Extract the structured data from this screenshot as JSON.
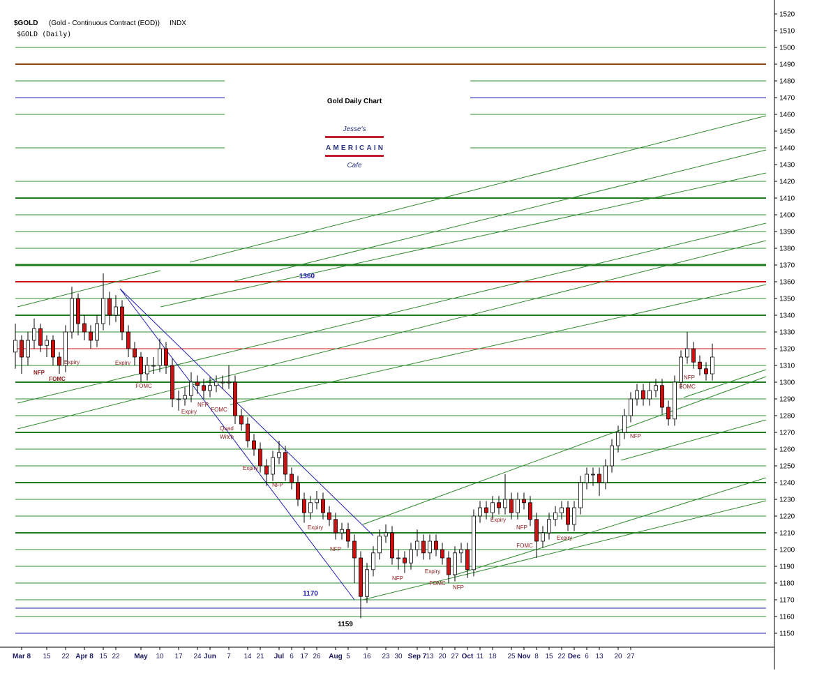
{
  "chart_data": {
    "type": "candlestick",
    "symbol": "$GOLD",
    "description": "(Gold - Continuous Contract (EOD))",
    "exchange": "INDX",
    "subtitle": "$GOLD (Daily)",
    "title": "Gold Daily Chart",
    "logo": {
      "top": "Jesse's",
      "middle": "AMERICAIN",
      "bottom": "Cafe"
    },
    "ylim": [
      1145,
      1525
    ],
    "yticks": [
      1150,
      1160,
      1170,
      1180,
      1190,
      1200,
      1210,
      1220,
      1230,
      1240,
      1250,
      1260,
      1270,
      1280,
      1290,
      1300,
      1310,
      1320,
      1330,
      1340,
      1350,
      1360,
      1370,
      1380,
      1390,
      1400,
      1410,
      1420,
      1430,
      1440,
      1450,
      1460,
      1470,
      1480,
      1490,
      1500,
      1510,
      1520
    ],
    "up_color": "#ffffff",
    "down_color": "#d01010",
    "categories": [
      null,
      "Mar 8",
      null,
      null,
      null,
      "15",
      null,
      null,
      "22",
      null,
      null,
      "Apr 8",
      null,
      null,
      "15",
      null,
      "22",
      null,
      null,
      null,
      "May",
      null,
      null,
      "10",
      null,
      null,
      "17",
      null,
      null,
      "24",
      null,
      "Jun",
      null,
      null,
      "7",
      null,
      null,
      "14",
      null,
      "21",
      null,
      null,
      "Jul",
      null,
      "6",
      null,
      "17",
      null,
      "26",
      null,
      null,
      "Aug",
      null,
      "5",
      null,
      null,
      "16",
      null,
      null,
      "23",
      null,
      "30",
      null,
      null,
      "Sep 7",
      null,
      "13",
      null,
      "20",
      null,
      "27",
      null,
      "Oct",
      null,
      "11",
      null,
      "18",
      null,
      null,
      "25",
      null,
      "Nov",
      null,
      "8",
      null,
      "15",
      null,
      "22",
      null,
      "Dec",
      null,
      "6",
      null,
      "13",
      null,
      null,
      "20",
      null,
      "27",
      null,
      null,
      null,
      null,
      null,
      null,
      null,
      null,
      null,
      null,
      null,
      null,
      null
    ],
    "ohlc": [
      [
        1318,
        1335,
        1308,
        1325
      ],
      [
        1325,
        1328,
        1305,
        1315
      ],
      [
        1315,
        1330,
        1310,
        1325
      ],
      [
        1325,
        1338,
        1320,
        1332
      ],
      [
        1332,
        1335,
        1318,
        1322
      ],
      [
        1322,
        1328,
        1315,
        1325
      ],
      [
        1325,
        1328,
        1310,
        1315
      ],
      [
        1315,
        1318,
        1305,
        1310
      ],
      [
        1310,
        1334,
        1306,
        1330
      ],
      [
        1330,
        1357,
        1326,
        1350
      ],
      [
        1350,
        1353,
        1328,
        1335
      ],
      [
        1335,
        1340,
        1325,
        1330
      ],
      [
        1330,
        1334,
        1320,
        1325
      ],
      [
        1325,
        1340,
        1321,
        1335
      ],
      [
        1335,
        1365,
        1331,
        1350
      ],
      [
        1350,
        1354,
        1334,
        1340
      ],
      [
        1340,
        1352,
        1336,
        1345
      ],
      [
        1345,
        1349,
        1325,
        1330
      ],
      [
        1330,
        1334,
        1315,
        1320
      ],
      [
        1320,
        1324,
        1310,
        1315
      ],
      [
        1315,
        1318,
        1300,
        1305
      ],
      [
        1305,
        1315,
        1301,
        1310
      ],
      [
        1310,
        1315,
        1305,
        1310
      ],
      [
        1310,
        1326,
        1306,
        1320
      ],
      [
        1320,
        1324,
        1305,
        1310
      ],
      [
        1310,
        1314,
        1285,
        1290
      ],
      [
        1290,
        1295,
        1283,
        1290
      ],
      [
        1290,
        1297,
        1286,
        1292
      ],
      [
        1292,
        1306,
        1288,
        1300
      ],
      [
        1300,
        1304,
        1293,
        1298
      ],
      [
        1298,
        1302,
        1290,
        1295
      ],
      [
        1295,
        1303,
        1291,
        1298
      ],
      [
        1298,
        1304,
        1294,
        1300
      ],
      [
        1300,
        1304,
        1296,
        1300
      ],
      [
        1300,
        1310,
        1296,
        1300
      ],
      [
        1300,
        1304,
        1275,
        1280
      ],
      [
        1280,
        1284,
        1271,
        1275
      ],
      [
        1275,
        1279,
        1261,
        1265
      ],
      [
        1265,
        1269,
        1256,
        1260
      ],
      [
        1260,
        1264,
        1246,
        1250
      ],
      [
        1250,
        1254,
        1238,
        1245
      ],
      [
        1245,
        1259,
        1241,
        1255
      ],
      [
        1255,
        1265,
        1251,
        1258
      ],
      [
        1258,
        1262,
        1241,
        1245
      ],
      [
        1245,
        1249,
        1236,
        1240
      ],
      [
        1240,
        1244,
        1226,
        1230
      ],
      [
        1230,
        1234,
        1216,
        1222
      ],
      [
        1222,
        1232,
        1218,
        1228
      ],
      [
        1228,
        1235,
        1224,
        1230
      ],
      [
        1230,
        1234,
        1218,
        1222
      ],
      [
        1222,
        1226,
        1214,
        1218
      ],
      [
        1218,
        1222,
        1206,
        1210
      ],
      [
        1210,
        1216,
        1206,
        1212
      ],
      [
        1212,
        1216,
        1201,
        1205
      ],
      [
        1205,
        1209,
        1180,
        1195
      ],
      [
        1195,
        1199,
        1159,
        1172
      ],
      [
        1172,
        1192,
        1168,
        1188
      ],
      [
        1188,
        1202,
        1184,
        1198
      ],
      [
        1198,
        1212,
        1194,
        1208
      ],
      [
        1208,
        1215,
        1204,
        1210
      ],
      [
        1210,
        1214,
        1191,
        1195
      ],
      [
        1195,
        1200,
        1188,
        1195
      ],
      [
        1195,
        1199,
        1186,
        1192
      ],
      [
        1192,
        1204,
        1188,
        1200
      ],
      [
        1200,
        1212,
        1196,
        1205
      ],
      [
        1205,
        1209,
        1194,
        1198
      ],
      [
        1198,
        1209,
        1194,
        1205
      ],
      [
        1205,
        1209,
        1196,
        1200
      ],
      [
        1200,
        1204,
        1191,
        1195
      ],
      [
        1195,
        1199,
        1180,
        1185
      ],
      [
        1185,
        1202,
        1181,
        1198
      ],
      [
        1198,
        1204,
        1192,
        1200
      ],
      [
        1200,
        1204,
        1183,
        1188
      ],
      [
        1188,
        1224,
        1184,
        1220
      ],
      [
        1220,
        1229,
        1216,
        1225
      ],
      [
        1225,
        1229,
        1218,
        1222
      ],
      [
        1222,
        1232,
        1218,
        1228
      ],
      [
        1228,
        1232,
        1221,
        1225
      ],
      [
        1225,
        1245,
        1221,
        1230
      ],
      [
        1230,
        1234,
        1218,
        1222
      ],
      [
        1222,
        1234,
        1218,
        1230
      ],
      [
        1230,
        1234,
        1224,
        1228
      ],
      [
        1228,
        1232,
        1214,
        1218
      ],
      [
        1218,
        1222,
        1195,
        1205
      ],
      [
        1205,
        1214,
        1201,
        1210
      ],
      [
        1210,
        1222,
        1206,
        1218
      ],
      [
        1218,
        1226,
        1214,
        1222
      ],
      [
        1222,
        1229,
        1218,
        1225
      ],
      [
        1225,
        1229,
        1211,
        1215
      ],
      [
        1215,
        1229,
        1211,
        1225
      ],
      [
        1225,
        1244,
        1221,
        1240
      ],
      [
        1240,
        1249,
        1236,
        1245
      ],
      [
        1245,
        1249,
        1238,
        1245
      ],
      [
        1245,
        1249,
        1232,
        1240
      ],
      [
        1240,
        1254,
        1236,
        1250
      ],
      [
        1250,
        1266,
        1246,
        1262
      ],
      [
        1262,
        1274,
        1258,
        1270
      ],
      [
        1270,
        1284,
        1266,
        1280
      ],
      [
        1280,
        1294,
        1276,
        1290
      ],
      [
        1290,
        1299,
        1286,
        1295
      ],
      [
        1295,
        1299,
        1286,
        1290
      ],
      [
        1290,
        1300,
        1286,
        1295
      ],
      [
        1295,
        1302,
        1291,
        1298
      ],
      [
        1298,
        1302,
        1281,
        1285
      ],
      [
        1285,
        1289,
        1274,
        1278
      ],
      [
        1278,
        1304,
        1274,
        1300
      ],
      [
        1300,
        1319,
        1296,
        1315
      ],
      [
        1315,
        1330,
        1311,
        1320
      ],
      [
        1320,
        1324,
        1308,
        1312
      ],
      [
        1312,
        1316,
        1304,
        1308
      ],
      [
        1308,
        1312,
        1301,
        1305
      ],
      [
        1305,
        1323,
        1301,
        1315
      ]
    ],
    "levels": [
      {
        "value": 1500,
        "color": "#2e8b2e",
        "width": 1
      },
      {
        "value": 1490,
        "color": "#8b4513",
        "width": 2
      },
      {
        "value": 1480,
        "color": "#2e8b2e",
        "width": 1
      },
      {
        "value": 1470,
        "color": "#2020b0",
        "width": 1
      },
      {
        "value": 1460,
        "color": "#2e8b2e",
        "width": 1
      },
      {
        "value": 1440,
        "color": "#2e8b2e",
        "width": 1
      },
      {
        "value": 1420,
        "color": "#2e8b2e",
        "width": 1
      },
      {
        "value": 1410,
        "color": "#1f7a1f",
        "width": 2
      },
      {
        "value": 1400,
        "color": "#2e8b2e",
        "width": 1
      },
      {
        "value": 1390,
        "color": "#2e8b2e",
        "width": 1
      },
      {
        "value": 1380,
        "color": "#2e8b2e",
        "width": 1
      },
      {
        "value": 1370,
        "color": "#1f7a1f",
        "width": 3
      },
      {
        "value": 1360,
        "color": "#d01010",
        "width": 2
      },
      {
        "value": 1350,
        "color": "#2e8b2e",
        "width": 1
      },
      {
        "value": 1340,
        "color": "#1f7a1f",
        "width": 2
      },
      {
        "value": 1330,
        "color": "#2e8b2e",
        "width": 1
      },
      {
        "value": 1320,
        "color": "#d01010",
        "width": 1
      },
      {
        "value": 1310,
        "color": "#2e8b2e",
        "width": 1
      },
      {
        "value": 1300,
        "color": "#1f7a1f",
        "width": 2
      },
      {
        "value": 1290,
        "color": "#2e8b2e",
        "width": 1
      },
      {
        "value": 1280,
        "color": "#2e8b2e",
        "width": 1
      },
      {
        "value": 1270,
        "color": "#1f7a1f",
        "width": 2
      },
      {
        "value": 1260,
        "color": "#2e8b2e",
        "width": 1
      },
      {
        "value": 1250,
        "color": "#2e8b2e",
        "width": 1
      },
      {
        "value": 1240,
        "color": "#1f7a1f",
        "width": 2
      },
      {
        "value": 1230,
        "color": "#2e8b2e",
        "width": 1
      },
      {
        "value": 1220,
        "color": "#2e8b2e",
        "width": 1
      },
      {
        "value": 1210,
        "color": "#1f7a1f",
        "width": 2
      },
      {
        "value": 1200,
        "color": "#2e8b2e",
        "width": 1
      },
      {
        "value": 1190,
        "color": "#2e8b2e",
        "width": 1
      },
      {
        "value": 1180,
        "color": "#2e8b2e",
        "width": 1
      },
      {
        "value": 1170,
        "color": "#2e8b2e",
        "width": 1
      },
      {
        "value": 1165,
        "color": "#2020b0",
        "width": 1
      },
      {
        "value": 1160,
        "color": "#2e8b2e",
        "width": 1
      },
      {
        "value": 1150,
        "color": "#2020b0",
        "width": 1
      }
    ],
    "annotations": [
      "1360",
      "1170",
      "1159",
      "Expiry",
      "NFP",
      "FOMC",
      "Expiry",
      "FOMC",
      "Expiry",
      "NFP",
      "FOMC",
      "Quad",
      "Witch",
      "Expiry",
      "NFP",
      "Expiry",
      "NFP",
      "NFP",
      "Expiry",
      "FOMC",
      "NFP",
      "Expiry",
      "NFP",
      "FOMC",
      "Expiry",
      "NFP",
      "NFP",
      "FOMC"
    ]
  }
}
